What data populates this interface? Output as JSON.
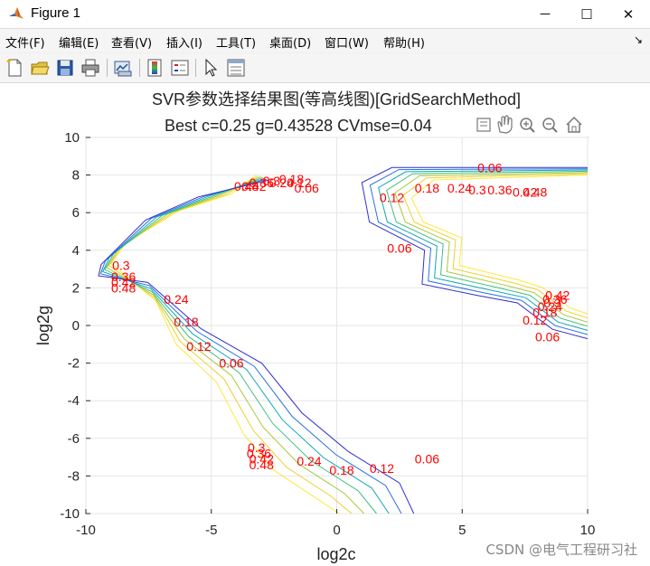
{
  "window": {
    "title": "Figure 1",
    "controls": {
      "minimize": "─",
      "maximize": "☐",
      "close": "✕"
    }
  },
  "menubar": {
    "items": [
      "文件(F)",
      "编辑(E)",
      "查看(V)",
      "插入(I)",
      "工具(T)",
      "桌面(D)",
      "窗口(W)",
      "帮助(H)"
    ],
    "dock_arrow": "↘"
  },
  "toolbar": {
    "icons": [
      "new-figure-icon",
      "open-file-icon",
      "save-icon",
      "print-icon",
      "link-plot-icon",
      "insert-colorbar-icon",
      "insert-legend-icon",
      "edit-plot-icon",
      "property-inspector-icon"
    ]
  },
  "axes_toolbar": {
    "icons": [
      "export-icon",
      "pan-icon",
      "zoom-in-icon",
      "zoom-out-icon",
      "home-icon"
    ]
  },
  "chart_data": {
    "type": "contour",
    "title": "SVR参数选择结果图(等高线图)[GridSearchMethod]",
    "subtitle": "Best c=0.25 g=0.43528 CVmse=0.04",
    "xlabel": "log2c",
    "ylabel": "log2g",
    "xlim": [
      -10,
      10
    ],
    "ylim": [
      -10,
      10
    ],
    "xticks": [
      -10,
      -5,
      0,
      5,
      10
    ],
    "yticks": [
      -10,
      -8,
      -6,
      -4,
      -2,
      0,
      2,
      4,
      6,
      8,
      10
    ],
    "grid": true,
    "colors": {
      "label": "#ff0000",
      "levels": [
        "#3030d0",
        "#2a70e0",
        "#10a8b8",
        "#40c080",
        "#a8c838",
        "#f0d030",
        "#ffe838"
      ]
    },
    "levels": [
      0.06,
      0.12,
      0.18,
      0.24,
      0.3,
      0.36,
      0.42,
      0.48
    ],
    "contour_labels": [
      {
        "text": "0.06",
        "x": 6.1,
        "y": 8.4
      },
      {
        "text": "0.12",
        "x": 2.2,
        "y": 6.8
      },
      {
        "text": "0.18",
        "x": 3.6,
        "y": 7.3
      },
      {
        "text": "0.24",
        "x": 4.9,
        "y": 7.3
      },
      {
        "text": "0.3",
        "x": 5.6,
        "y": 7.2
      },
      {
        "text": "0.36",
        "x": 6.5,
        "y": 7.2
      },
      {
        "text": "0.42",
        "x": 7.5,
        "y": 7.1
      },
      {
        "text": "0.48",
        "x": 7.9,
        "y": 7.1
      },
      {
        "text": "0.06",
        "x": 2.5,
        "y": 4.1
      },
      {
        "text": "0.06",
        "x": 8.4,
        "y": -0.6
      },
      {
        "text": "0.12",
        "x": 7.9,
        "y": 0.3
      },
      {
        "text": "0.18",
        "x": 8.3,
        "y": 0.7
      },
      {
        "text": "0.24",
        "x": 8.5,
        "y": 1.0
      },
      {
        "text": "0.3",
        "x": 8.6,
        "y": 1.2
      },
      {
        "text": "0.36",
        "x": 8.7,
        "y": 1.4
      },
      {
        "text": "0.42",
        "x": 8.8,
        "y": 1.6
      },
      {
        "text": "0.3",
        "x": -8.6,
        "y": 3.2
      },
      {
        "text": "0.36",
        "x": -8.5,
        "y": 2.6
      },
      {
        "text": "0.42",
        "x": -8.5,
        "y": 2.3
      },
      {
        "text": "0.48",
        "x": -8.5,
        "y": 2.0
      },
      {
        "text": "0.24",
        "x": -6.4,
        "y": 1.4
      },
      {
        "text": "0.18",
        "x": -6.0,
        "y": 0.2
      },
      {
        "text": "0.12",
        "x": -5.5,
        "y": -1.1
      },
      {
        "text": "0.06",
        "x": -4.2,
        "y": -2.0
      },
      {
        "text": "0.06",
        "x": -1.2,
        "y": 7.3
      },
      {
        "text": "0.12",
        "x": -1.5,
        "y": 7.6
      },
      {
        "text": "0.18",
        "x": -1.8,
        "y": 7.8
      },
      {
        "text": "0.24",
        "x": -2.2,
        "y": 7.6
      },
      {
        "text": "0.3",
        "x": -2.6,
        "y": 7.7
      },
      {
        "text": "0.36",
        "x": -3.0,
        "y": 7.6
      },
      {
        "text": "0.42",
        "x": -3.3,
        "y": 7.4
      },
      {
        "text": "0.48",
        "x": -3.6,
        "y": 7.4
      },
      {
        "text": "0.3",
        "x": -3.2,
        "y": -6.5
      },
      {
        "text": "0.36",
        "x": -3.1,
        "y": -6.8
      },
      {
        "text": "0.42",
        "x": -3.0,
        "y": -7.1
      },
      {
        "text": "0.48",
        "x": -3.0,
        "y": -7.4
      },
      {
        "text": "0.24",
        "x": -1.1,
        "y": -7.2
      },
      {
        "text": "0.18",
        "x": 0.2,
        "y": -7.7
      },
      {
        "text": "0.12",
        "x": 1.8,
        "y": -7.6
      },
      {
        "text": "0.06",
        "x": 3.6,
        "y": -7.1
      }
    ]
  },
  "watermark": "CSDN @电气工程研习社"
}
